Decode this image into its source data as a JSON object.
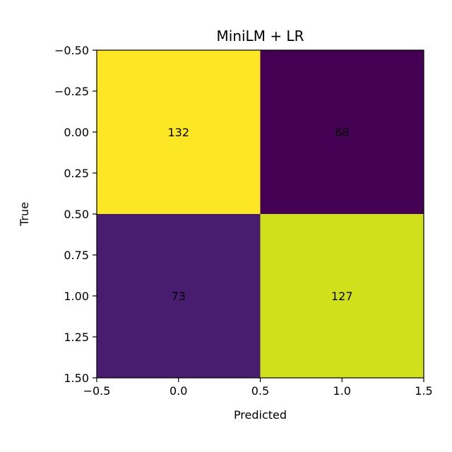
{
  "chart_data": {
    "type": "heatmap",
    "title": "MiniLM + LR",
    "xlabel": "Predicted",
    "ylabel": "True",
    "xlim": [
      -0.5,
      1.5
    ],
    "ylim": [
      1.5,
      -0.5
    ],
    "x_ticks": [
      "−0.5",
      "0.0",
      "0.5",
      "1.0",
      "1.5"
    ],
    "y_ticks": [
      "−0.50",
      "−0.25",
      "0.00",
      "0.25",
      "0.50",
      "0.75",
      "1.00",
      "1.25",
      "1.50"
    ],
    "matrix": [
      [
        132,
        68
      ],
      [
        73,
        127
      ]
    ],
    "cell_colors": [
      [
        "#fde725",
        "#440154"
      ],
      [
        "#481c6e",
        "#d0e11c"
      ]
    ],
    "grid": false,
    "colormap": "viridis"
  }
}
